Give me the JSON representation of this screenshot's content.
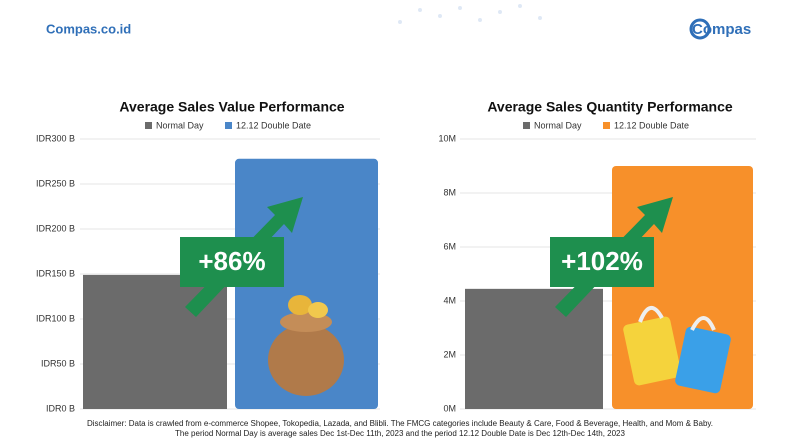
{
  "header": {
    "site": "Compas.co.id",
    "logo": "Compas"
  },
  "chart_data": [
    {
      "type": "bar",
      "title": "Average Sales Value Performance",
      "series": [
        {
          "name": "Normal Day",
          "color": "#6b6b6b",
          "values": [
            149
          ]
        },
        {
          "name": "12.12 Double Date",
          "color": "#4a86c8",
          "values": [
            278
          ]
        }
      ],
      "ylim": [
        0,
        300
      ],
      "yticks": [
        {
          "value": 0,
          "label": "IDR0 B"
        },
        {
          "value": 50,
          "label": "IDR50 B"
        },
        {
          "value": 100,
          "label": "IDR100 B"
        },
        {
          "value": 150,
          "label": "IDR150 B"
        },
        {
          "value": 200,
          "label": "IDR200 B"
        },
        {
          "value": 250,
          "label": "IDR250 B"
        },
        {
          "value": 300,
          "label": "IDR300 B"
        }
      ],
      "grid": true,
      "annotation": "+86%"
    },
    {
      "type": "bar",
      "title": "Average Sales Quantity Performance",
      "series": [
        {
          "name": "Normal Day",
          "color": "#6b6b6b",
          "values": [
            4450000
          ]
        },
        {
          "name": "12.12 Double Date",
          "color": "#f7902a",
          "values": [
            9000000
          ]
        }
      ],
      "ylim": [
        0,
        10000000
      ],
      "yticks": [
        {
          "value": 0,
          "label": "0M"
        },
        {
          "value": 2000000,
          "label": "2M"
        },
        {
          "value": 4000000,
          "label": "4M"
        },
        {
          "value": 6000000,
          "label": "6M"
        },
        {
          "value": 8000000,
          "label": "8M"
        },
        {
          "value": 10000000,
          "label": "10M"
        }
      ],
      "grid": true,
      "annotation": "+102%"
    }
  ],
  "disclaimer": [
    "Disclaimer: Data is crawled from e-commerce Shopee, Tokopedia, Lazada, and Blibli. The FMCG categories include Beauty & Care, Food & Beverage, Health, and Mom & Baby.",
    "The period Normal Day is average sales Dec 1st-Dec 11th, 2023 and the period 12.12 Double Date is Dec 12th-Dec 14th, 2023"
  ]
}
